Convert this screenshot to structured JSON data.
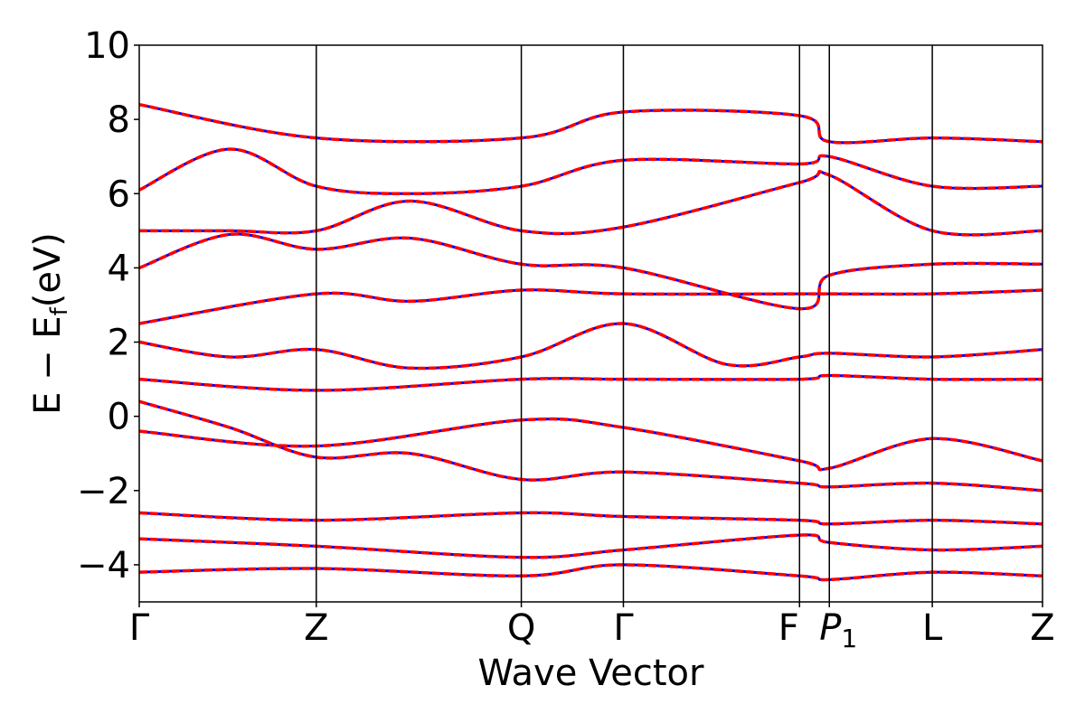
{
  "chart_data": {
    "type": "line",
    "title": "",
    "xlabel": "Wave Vector",
    "ylabel": "E − E_f (eV)",
    "ylabel_parts": {
      "main": "E  −  E",
      "sub": "f",
      "unit": "(eV)"
    },
    "ylim": [
      -5,
      10
    ],
    "yticks": [
      -4,
      -2,
      0,
      2,
      4,
      6,
      8,
      10
    ],
    "ytick_labels": [
      "−4",
      "−2",
      "0",
      "2",
      "4",
      "6",
      "8",
      "10"
    ],
    "kpath": [
      {
        "label": "Γ",
        "k": 0.0
      },
      {
        "label": "Z",
        "k": 0.196
      },
      {
        "label": "Q",
        "k": 0.423
      },
      {
        "label": "Γ",
        "k": 0.536
      },
      {
        "label": "F",
        "k": 0.731
      },
      {
        "label": "P",
        "sub": "1",
        "k": 0.764
      },
      {
        "label": "L",
        "k": 0.878
      },
      {
        "label": "Z",
        "k": 1.0
      }
    ],
    "grid": false,
    "colors": {
      "band_red": "#ff0000",
      "band_blue": "#0000ff",
      "axis": "#000000"
    },
    "series": [
      {
        "style": "blue solid under red dashed",
        "values": [
          {
            "k": [
              0,
              0.196,
              0.423,
              0.536,
              0.731,
              0.764,
              0.878,
              1.0
            ],
            "e": [
              -0.4,
              -0.8,
              -0.1,
              -0.3,
              -1.2,
              -1.4,
              -0.6,
              -1.2
            ]
          },
          {
            "k": [
              0,
              0.1,
              0.196,
              0.3,
              0.423,
              0.536,
              0.731,
              0.764,
              0.878,
              1.0
            ],
            "e": [
              0.4,
              -0.3,
              -1.1,
              -1.0,
              -1.7,
              -1.5,
              -1.8,
              -1.9,
              -1.8,
              -2.0
            ]
          },
          {
            "k": [
              0,
              0.196,
              0.423,
              0.536,
              0.731,
              0.764,
              0.878,
              1.0
            ],
            "e": [
              1.0,
              0.7,
              1.0,
              1.0,
              1.0,
              1.1,
              1.0,
              1.0
            ]
          },
          {
            "k": [
              0,
              0.1,
              0.196,
              0.3,
              0.423,
              0.536,
              0.65,
              0.731,
              0.764,
              0.878,
              1.0
            ],
            "e": [
              2.0,
              1.6,
              1.8,
              1.3,
              1.6,
              2.5,
              1.4,
              1.6,
              1.7,
              1.6,
              1.8
            ]
          },
          {
            "k": [
              0,
              0.196,
              0.3,
              0.423,
              0.536,
              0.731,
              0.764,
              0.878,
              1.0
            ],
            "e": [
              2.5,
              3.3,
              3.1,
              3.4,
              3.3,
              3.3,
              3.3,
              3.3,
              3.4
            ]
          },
          {
            "k": [
              0,
              0.1,
              0.196,
              0.3,
              0.423,
              0.536,
              0.731,
              0.764,
              0.878,
              1.0
            ],
            "e": [
              4.0,
              4.9,
              4.5,
              4.8,
              4.1,
              4.0,
              2.9,
              3.8,
              4.1,
              4.1
            ]
          },
          {
            "k": [
              0,
              0.1,
              0.196,
              0.3,
              0.423,
              0.536,
              0.731,
              0.764,
              0.878,
              1.0
            ],
            "e": [
              5.0,
              5.0,
              5.0,
              5.8,
              5.0,
              5.1,
              6.3,
              6.5,
              5.0,
              5.0
            ]
          },
          {
            "k": [
              0,
              0.1,
              0.196,
              0.3,
              0.423,
              0.536,
              0.731,
              0.764,
              0.878,
              1.0
            ],
            "e": [
              6.1,
              7.2,
              6.2,
              6.0,
              6.2,
              6.9,
              6.8,
              7.0,
              6.2,
              6.2
            ]
          },
          {
            "k": [
              0,
              0.196,
              0.423,
              0.536,
              0.731,
              0.764,
              0.878,
              1.0
            ],
            "e": [
              8.4,
              7.5,
              7.5,
              8.2,
              8.1,
              7.4,
              7.5,
              7.4
            ]
          },
          {
            "k": [
              0,
              0.196,
              0.423,
              0.536,
              0.731,
              0.764,
              0.878,
              1.0
            ],
            "e": [
              -2.6,
              -2.8,
              -2.6,
              -2.7,
              -2.8,
              -2.9,
              -2.8,
              -2.9
            ]
          },
          {
            "k": [
              0,
              0.196,
              0.423,
              0.536,
              0.731,
              0.764,
              0.878,
              1.0
            ],
            "e": [
              -3.3,
              -3.5,
              -3.8,
              -3.6,
              -3.2,
              -3.4,
              -3.6,
              -3.5
            ]
          },
          {
            "k": [
              0,
              0.196,
              0.423,
              0.536,
              0.731,
              0.764,
              0.878,
              1.0
            ],
            "e": [
              -4.2,
              -4.1,
              -4.3,
              -4.0,
              -4.3,
              -4.4,
              -4.2,
              -4.3
            ]
          }
        ]
      }
    ]
  }
}
